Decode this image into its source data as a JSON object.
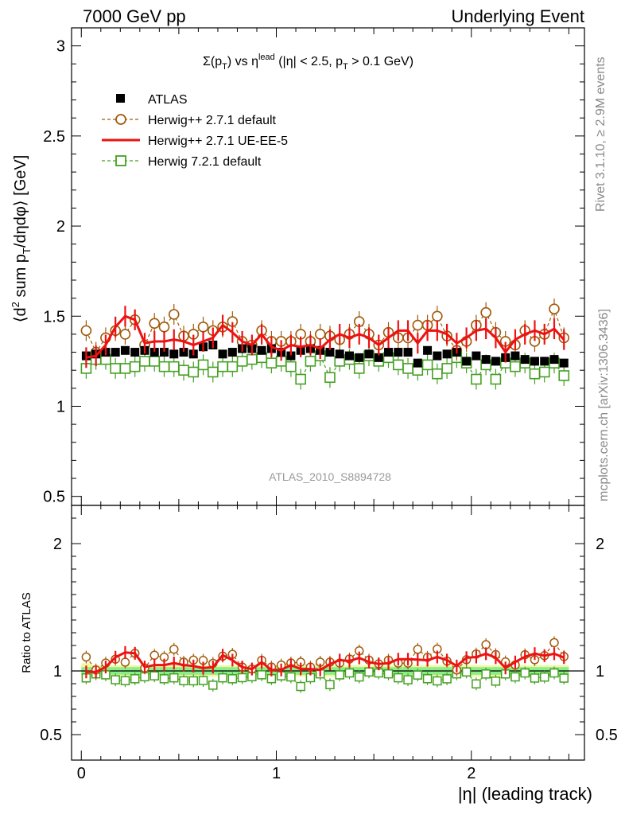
{
  "header": {
    "left": "7000 GeV pp",
    "right": "Underlying Event"
  },
  "side_labels": {
    "rivet": "Rivet 3.1.10, ≥ 2.9M events",
    "mcplots": "mcplots.cern.ch [arXiv:1306.3436]"
  },
  "watermark": "ATLAS_2010_S8894728",
  "colors": {
    "atlas": "#000000",
    "herwigpp_default": "#a05a0a",
    "herwigpp_ueee5": "#ee1111",
    "herwig7": "#44a022",
    "band_stat": "#88ee88",
    "band_total": "#f6f6a0",
    "side_text": "#888888"
  },
  "chart_data": {
    "type": "scatter",
    "title_parts": {
      "sigma": "Σ(p",
      "T": "T",
      "vs": ") vs η",
      "lead": "lead",
      "cut1": " (|η| < 2.5, p",
      "cut2": " > 0.1 GeV)"
    },
    "xlabel": "|η| (leading track)",
    "ylabel_parts": {
      "a": "⟨d",
      "sup2": "2",
      "b": " sum p",
      "subT": "T",
      "c": "/dηdφ⟩ [GeV]"
    },
    "ratio_ylabel": "Ratio to ATLAS",
    "xlim": [
      -0.05,
      2.58
    ],
    "ylim": [
      0.45,
      3.1
    ],
    "ratio_ylim": [
      0.3,
      2.3
    ],
    "x_ticks": [
      0,
      1,
      2
    ],
    "y_ticks": [
      0.5,
      1,
      1.5,
      2,
      2.5,
      3
    ],
    "y_tick_labels": [
      "0.5",
      "1",
      "1.5",
      "2",
      "2.5",
      "3"
    ],
    "ratio_ticks": [
      0.5,
      1,
      2
    ],
    "ratio_tick_labels": [
      "0.5",
      "1",
      "2"
    ],
    "x_tick_labels": [
      "0",
      "1",
      "2"
    ],
    "x": [
      0.025,
      0.075,
      0.125,
      0.175,
      0.225,
      0.275,
      0.325,
      0.375,
      0.425,
      0.475,
      0.525,
      0.575,
      0.625,
      0.675,
      0.725,
      0.775,
      0.825,
      0.875,
      0.925,
      0.975,
      1.025,
      1.075,
      1.125,
      1.175,
      1.225,
      1.275,
      1.325,
      1.375,
      1.425,
      1.475,
      1.525,
      1.575,
      1.625,
      1.675,
      1.725,
      1.775,
      1.825,
      1.875,
      1.925,
      1.975,
      2.025,
      2.075,
      2.125,
      2.175,
      2.225,
      2.275,
      2.325,
      2.375,
      2.425,
      2.475
    ],
    "series": [
      {
        "name": "ATLAS",
        "marker": "square",
        "values": [
          1.28,
          1.29,
          1.3,
          1.3,
          1.31,
          1.3,
          1.31,
          1.3,
          1.3,
          1.29,
          1.3,
          1.29,
          1.33,
          1.34,
          1.29,
          1.3,
          1.32,
          1.32,
          1.31,
          1.32,
          1.3,
          1.28,
          1.31,
          1.32,
          1.31,
          1.3,
          1.29,
          1.28,
          1.27,
          1.29,
          1.27,
          1.3,
          1.3,
          1.3,
          1.24,
          1.31,
          1.28,
          1.29,
          1.3,
          1.25,
          1.28,
          1.26,
          1.25,
          1.27,
          1.28,
          1.26,
          1.25,
          1.25,
          1.26,
          1.24
        ]
      },
      {
        "name": "Herwig++ 2.7.1 default",
        "marker": "open-circle",
        "line": "dashed",
        "values": [
          1.42,
          1.3,
          1.38,
          1.42,
          1.4,
          1.48,
          1.34,
          1.46,
          1.44,
          1.51,
          1.39,
          1.4,
          1.44,
          1.42,
          1.44,
          1.47,
          1.36,
          1.34,
          1.42,
          1.36,
          1.36,
          1.36,
          1.4,
          1.36,
          1.4,
          1.39,
          1.37,
          1.4,
          1.47,
          1.4,
          1.34,
          1.41,
          1.38,
          1.38,
          1.45,
          1.45,
          1.5,
          1.39,
          1.31,
          1.36,
          1.45,
          1.52,
          1.41,
          1.36,
          1.34,
          1.42,
          1.36,
          1.4,
          1.54,
          1.38
        ]
      },
      {
        "name": "Herwig++ 2.7.1 UE-EE-5",
        "marker": "line",
        "line": "solid",
        "values": [
          1.27,
          1.28,
          1.34,
          1.44,
          1.5,
          1.48,
          1.35,
          1.36,
          1.36,
          1.37,
          1.36,
          1.34,
          1.36,
          1.38,
          1.45,
          1.41,
          1.36,
          1.34,
          1.4,
          1.33,
          1.31,
          1.34,
          1.33,
          1.34,
          1.32,
          1.37,
          1.4,
          1.38,
          1.4,
          1.38,
          1.34,
          1.38,
          1.42,
          1.42,
          1.35,
          1.42,
          1.42,
          1.4,
          1.35,
          1.38,
          1.42,
          1.43,
          1.38,
          1.3,
          1.37,
          1.4,
          1.42,
          1.4,
          1.43,
          1.37
        ]
      },
      {
        "name": "Herwig 7.2.1 default",
        "marker": "open-square",
        "line": "dashed",
        "values": [
          1.21,
          1.26,
          1.26,
          1.21,
          1.21,
          1.22,
          1.25,
          1.25,
          1.22,
          1.22,
          1.2,
          1.19,
          1.23,
          1.19,
          1.22,
          1.22,
          1.25,
          1.26,
          1.27,
          1.24,
          1.25,
          1.22,
          1.15,
          1.25,
          1.28,
          1.16,
          1.25,
          1.26,
          1.21,
          1.28,
          1.25,
          1.27,
          1.23,
          1.21,
          1.2,
          1.23,
          1.18,
          1.21,
          1.27,
          1.24,
          1.15,
          1.23,
          1.15,
          1.24,
          1.22,
          1.24,
          1.18,
          1.19,
          1.24,
          1.17
        ]
      }
    ],
    "legend_position": "top-left"
  }
}
